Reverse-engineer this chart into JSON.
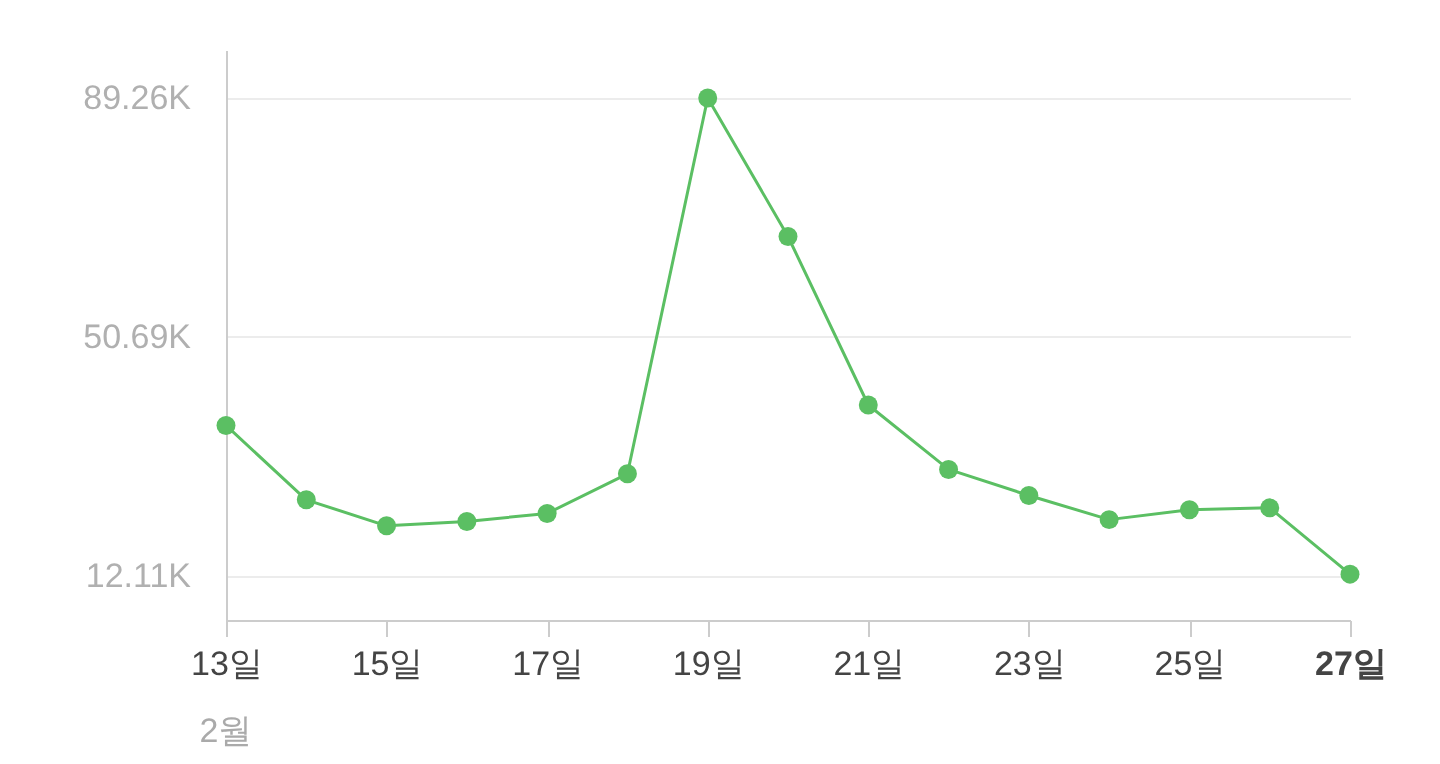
{
  "chart_data": {
    "type": "line",
    "categories": [
      "13일",
      null,
      "15일",
      null,
      "17일",
      null,
      "19일",
      null,
      "21일",
      null,
      "23일",
      null,
      "25일",
      null,
      "27일"
    ],
    "series": [
      {
        "color": "#5bbf63",
        "values": [
          36.4,
          24.4,
          20.2,
          20.9,
          22.2,
          28.6,
          89.26,
          66.9,
          39.7,
          29.3,
          25.1,
          21.2,
          22.8,
          23.1,
          12.4
        ]
      }
    ],
    "ylim": [
      5,
      97
    ],
    "yticks": [
      {
        "value": 12.11,
        "label": "12.11K"
      },
      {
        "value": 50.69,
        "label": "50.69K"
      },
      {
        "value": 89.26,
        "label": "89.26K"
      }
    ],
    "annotations": [
      "2월"
    ],
    "grid": "y",
    "marker": "circle",
    "line_style": "solid"
  }
}
